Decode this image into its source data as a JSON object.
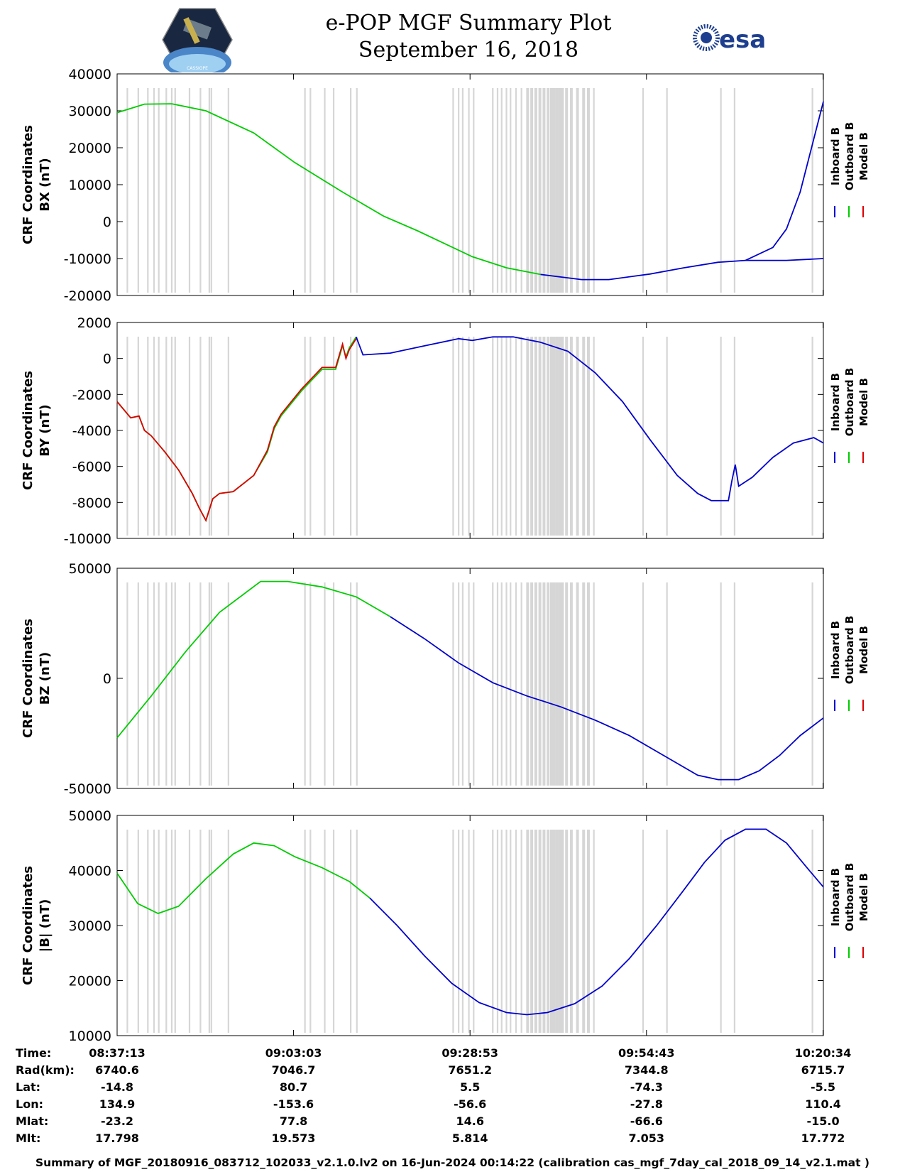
{
  "header": {
    "title": "e-POP MGF Summary Plot",
    "date": "September 16, 2018",
    "left_logo_icon": "cassiope-satellite-logo",
    "left_logo_text": "CASSIOPE",
    "right_logo_icon": "esa-logo",
    "right_logo_text": "esa"
  },
  "legend": {
    "entries": [
      {
        "label": "Inboard B",
        "color": "#0000cc"
      },
      {
        "label": "Outboard B",
        "color": "#00cc00"
      },
      {
        "label": "Model B",
        "color": "#dd0000"
      }
    ]
  },
  "colors": {
    "gaps": "#d6d6d6",
    "inboard": "#0000cc",
    "outboard": "#00cc00",
    "model": "#dd0000"
  },
  "chart_data": [
    {
      "type": "line",
      "title": "",
      "ylabel": [
        "CRF Coordinates",
        "BX (nT)"
      ],
      "ylim": [
        -20000,
        40000
      ],
      "yticks": [
        -20000,
        -10000,
        0,
        10000,
        20000,
        30000,
        40000
      ],
      "x_minutes": [
        0,
        4,
        8,
        13,
        20,
        26,
        33,
        39,
        44,
        48,
        52,
        57,
        62,
        68,
        72,
        78,
        83,
        88,
        92,
        98,
        103.4
      ],
      "series": [
        {
          "name": "Outboard B",
          "values": [
            29500,
            31800,
            31900,
            30000,
            24000,
            16000,
            8000,
            1500,
            -2500,
            -6000,
            -9500,
            -12500,
            -14300,
            null,
            null,
            null,
            null,
            null,
            null,
            null,
            null
          ]
        },
        {
          "name": "Inboard B",
          "values": [
            null,
            null,
            null,
            null,
            null,
            null,
            null,
            null,
            null,
            null,
            null,
            null,
            -14300,
            -15700,
            -15700,
            -14200,
            -12500,
            -11000,
            -10500,
            -10500,
            -10000
          ]
        },
        {
          "name": "Inboard B (late)",
          "values": []
        }
      ],
      "inboard_tail_x": [
        92,
        96,
        98,
        100,
        103.4
      ],
      "inboard_tail_y": [
        -10500,
        -7000,
        -2000,
        8000,
        32500
      ]
    },
    {
      "type": "line",
      "ylabel": [
        "CRF Coordinates",
        "BY (nT)"
      ],
      "ylim": [
        -10000,
        2000
      ],
      "yticks": [
        -10000,
        -8000,
        -6000,
        -4000,
        -2000,
        0,
        2000
      ],
      "x_minutes": [
        0,
        2,
        3.2,
        4,
        5,
        7,
        9,
        11,
        12,
        13,
        14,
        15,
        17,
        20,
        22,
        23,
        24,
        27,
        30,
        32,
        33,
        33.5,
        34,
        35
      ],
      "series": [
        {
          "name": "Outboard B",
          "values": [
            -2400,
            -3300,
            -3200,
            -4000,
            -4300,
            -5200,
            -6200,
            -7500,
            -8300,
            -9000,
            -7800,
            -7500,
            -7400,
            -6500,
            -5200,
            -3900,
            -3200,
            -1800,
            -600,
            -600,
            700,
            100,
            600,
            1200
          ]
        },
        {
          "name": "Model B",
          "values": [
            -2400,
            -3300,
            -3200,
            -4000,
            -4300,
            -5200,
            -6200,
            -7500,
            -8300,
            -9000,
            -7800,
            -7500,
            -7400,
            -6500,
            -5100,
            -3800,
            -3100,
            -1700,
            -500,
            -500,
            800,
            0,
            500,
            1100
          ]
        }
      ],
      "inboard_x": [
        35,
        36,
        40,
        45,
        50,
        52,
        55,
        58,
        62,
        66,
        70,
        74,
        78,
        82,
        85,
        87,
        88,
        89.5,
        90,
        90.5,
        91,
        93,
        96,
        99,
        102,
        103.4
      ],
      "inboard_y": [
        1200,
        200,
        300,
        700,
        1100,
        1000,
        1200,
        1200,
        900,
        400,
        -800,
        -2400,
        -4500,
        -6500,
        -7500,
        -7900,
        -7900,
        -7900,
        -6800,
        -5900,
        -7100,
        -6600,
        -5500,
        -4700,
        -4400,
        -4700
      ]
    },
    {
      "type": "line",
      "ylabel": [
        "CRF Coordinates",
        "BZ (nT)"
      ],
      "ylim": [
        -50000,
        50000
      ],
      "yticks": [
        -50000,
        0,
        50000
      ],
      "x_minutes": [
        0,
        5,
        10,
        15,
        21,
        25,
        30,
        35,
        40
      ],
      "series": [
        {
          "name": "Outboard B",
          "values": [
            -27000,
            -8000,
            12000,
            30000,
            44000,
            44000,
            41500,
            37000,
            28000
          ]
        }
      ],
      "inboard_x": [
        40,
        45,
        50,
        55,
        60,
        65,
        70,
        75,
        80,
        85,
        88,
        91,
        94,
        97,
        100,
        103.4
      ],
      "inboard_y": [
        28000,
        18000,
        7000,
        -2000,
        -8000,
        -13000,
        -19000,
        -26000,
        -35000,
        -44000,
        -46000,
        -46000,
        -42000,
        -35000,
        -26000,
        -18000
      ]
    },
    {
      "type": "line",
      "ylabel": [
        "CRF Coordinates",
        "|B| (nT)"
      ],
      "ylim": [
        10000,
        50000
      ],
      "yticks": [
        10000,
        20000,
        30000,
        40000,
        50000
      ],
      "x_minutes": [
        0,
        3,
        6,
        9,
        13,
        17,
        20,
        23,
        26,
        30,
        34,
        37
      ],
      "series": [
        {
          "name": "Outboard B",
          "values": [
            39500,
            34000,
            32200,
            33500,
            38500,
            43000,
            45000,
            44500,
            42500,
            40500,
            38000,
            35000
          ]
        }
      ],
      "inboard_x": [
        37,
        41,
        45,
        49,
        53,
        57,
        60,
        63,
        67,
        71,
        75,
        79,
        83,
        86,
        89,
        92,
        95,
        98,
        101,
        103.4
      ],
      "inboard_y": [
        35000,
        30000,
        24500,
        19500,
        16000,
        14200,
        13800,
        14200,
        15800,
        19000,
        24000,
        30000,
        36500,
        41500,
        45500,
        47500,
        47500,
        45000,
        40500,
        37000
      ]
    }
  ],
  "x_axis": {
    "range_minutes": [
      0,
      103.4
    ],
    "tick_minutes": [
      0,
      25.83,
      51.67,
      77.5,
      103.35
    ]
  },
  "gap_minutes": [
    1.5,
    3.1,
    4.5,
    5.4,
    6.1,
    7.2,
    8.0,
    8.5,
    10.6,
    12.2,
    13.5,
    13.8,
    16.3,
    27.5,
    28.3,
    30.4,
    31.7,
    34.2,
    35.1,
    49.2,
    50.0,
    50.6,
    51.5,
    52.2,
    55.0,
    55.7,
    56.3,
    57.0,
    57.6,
    58.4,
    59.2,
    60.1,
    60.7,
    61.3,
    61.9,
    62.5,
    63.1,
    63.6,
    64.0,
    64.4,
    64.8,
    65.2,
    65.8,
    66.5,
    67.4,
    68.3,
    69.0,
    69.8,
    77.0,
    80.5,
    88.4,
    90.4,
    101.8
  ],
  "info_table": {
    "row_labels": [
      "Time:",
      "Rad(km):",
      "Lat:",
      "Lon:",
      "Mlat:",
      "Mlt:"
    ],
    "columns": [
      [
        "08:37:13",
        "6740.6",
        "-14.8",
        "134.9",
        "-23.2",
        "17.798"
      ],
      [
        "09:03:03",
        "7046.7",
        "80.7",
        "-153.6",
        "77.8",
        "19.573"
      ],
      [
        "09:28:53",
        "7651.2",
        "5.5",
        "-56.6",
        "14.6",
        "5.814"
      ],
      [
        "09:54:43",
        "7344.8",
        "-74.3",
        "-27.8",
        "-66.6",
        "7.053"
      ],
      [
        "10:20:34",
        "6715.7",
        "-5.5",
        "110.4",
        "-15.0",
        "17.772"
      ]
    ]
  },
  "footer": "Summary of MGF_20180916_083712_102033_v2.1.0.lv2 on 16-Jun-2024 00:14:22 (calibration cas_mgf_7day_cal_2018_09_14_v2.1.mat )"
}
